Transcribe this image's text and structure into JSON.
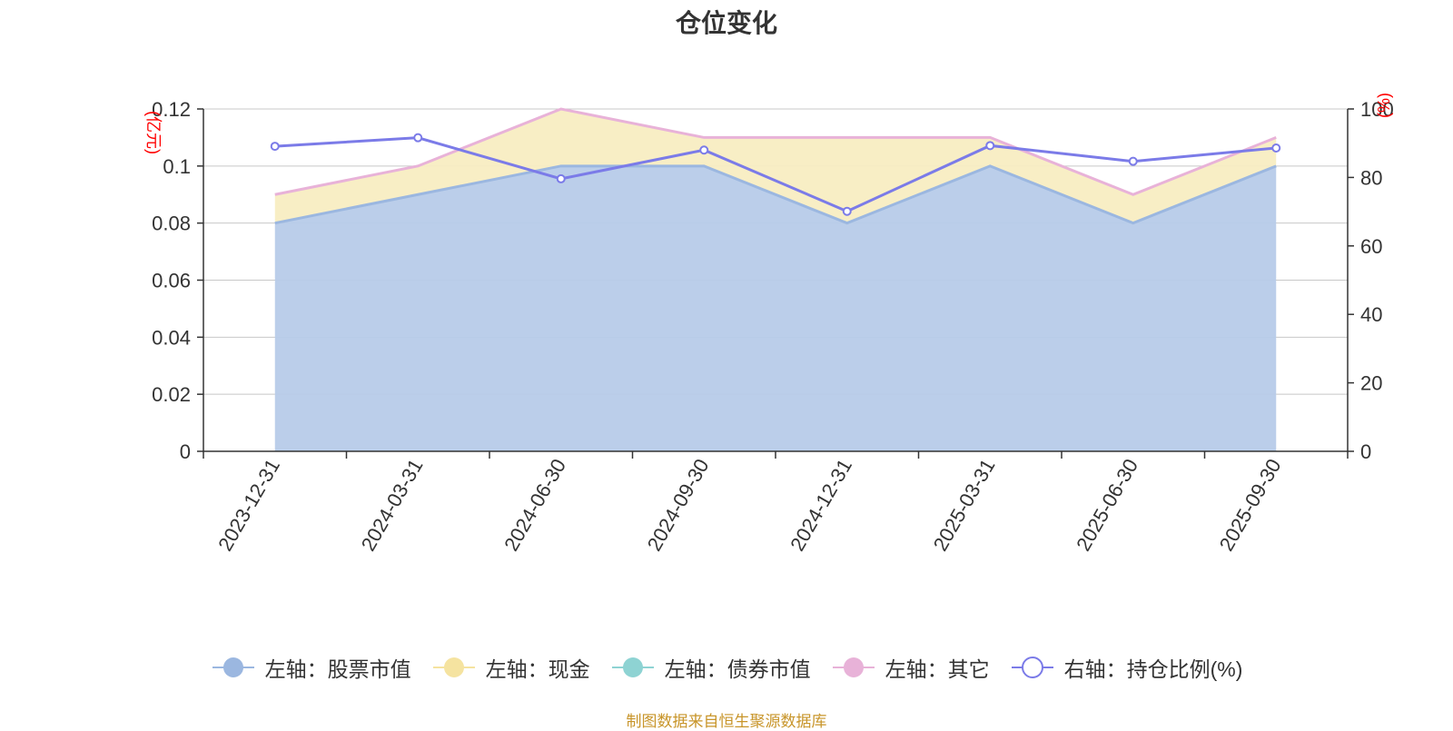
{
  "title": "仓位变化",
  "source_note": "制图数据来自恒生聚源数据库",
  "colors": {
    "stock": "#9bb7e0",
    "stock_fill": "#b7cbe9",
    "cash": "#f5e3a0",
    "cash_fill": "#f8edc2",
    "bond": "#8ed3d3",
    "other": "#e8b2d8",
    "ratio": "#7b7be8",
    "grid": "#c8c8c8",
    "axis": "#333333",
    "unit": "#ff0000"
  },
  "legend": [
    {
      "label": "左轴：股票市值",
      "key": "stock",
      "marker": "filled"
    },
    {
      "label": "左轴：现金",
      "key": "cash",
      "marker": "filled"
    },
    {
      "label": "左轴：债券市值",
      "key": "bond",
      "marker": "filled"
    },
    {
      "label": "左轴：其它",
      "key": "other",
      "marker": "filled"
    },
    {
      "label": "右轴：持仓比例(%)",
      "key": "ratio",
      "marker": "hollow"
    }
  ],
  "chart_data": {
    "type": "area",
    "categories": [
      "2023-12-31",
      "2024-03-31",
      "2024-06-30",
      "2024-09-30",
      "2024-12-31",
      "2025-03-31",
      "2025-06-30",
      "2025-09-30"
    ],
    "left_axis": {
      "unit": "(亿元)",
      "ylim": [
        0,
        0.12
      ],
      "ticks": [
        "0",
        "0.02",
        "0.04",
        "0.06",
        "0.08",
        "0.1",
        "0.12"
      ]
    },
    "right_axis": {
      "unit": "(%)",
      "ylim": [
        0,
        100
      ],
      "ticks": [
        "0",
        "20",
        "40",
        "60",
        "80",
        "100"
      ]
    },
    "grid": true,
    "legend_position": "bottom",
    "series": [
      {
        "name": "左轴：股票市值",
        "axis": "left",
        "stacked": true,
        "values": [
          0.08,
          0.09,
          0.1,
          0.1,
          0.08,
          0.1,
          0.08,
          0.1
        ]
      },
      {
        "name": "左轴：现金",
        "axis": "left",
        "stacked": true,
        "values": [
          0.01,
          0.01,
          0.02,
          0.01,
          0.03,
          0.01,
          0.01,
          0.01
        ]
      },
      {
        "name": "左轴：债券市值",
        "axis": "left",
        "stacked": true,
        "values": [
          0,
          0,
          0,
          0,
          0,
          0,
          0,
          0
        ]
      },
      {
        "name": "左轴：其它",
        "axis": "left",
        "stacked": true,
        "values": [
          0,
          0,
          0,
          0,
          0,
          0,
          0,
          0
        ]
      },
      {
        "name": "右轴：持仓比例(%)",
        "axis": "right",
        "type": "line",
        "values": [
          89.1,
          91.6,
          79.6,
          88.0,
          70.1,
          89.3,
          84.7,
          88.6
        ]
      }
    ]
  }
}
